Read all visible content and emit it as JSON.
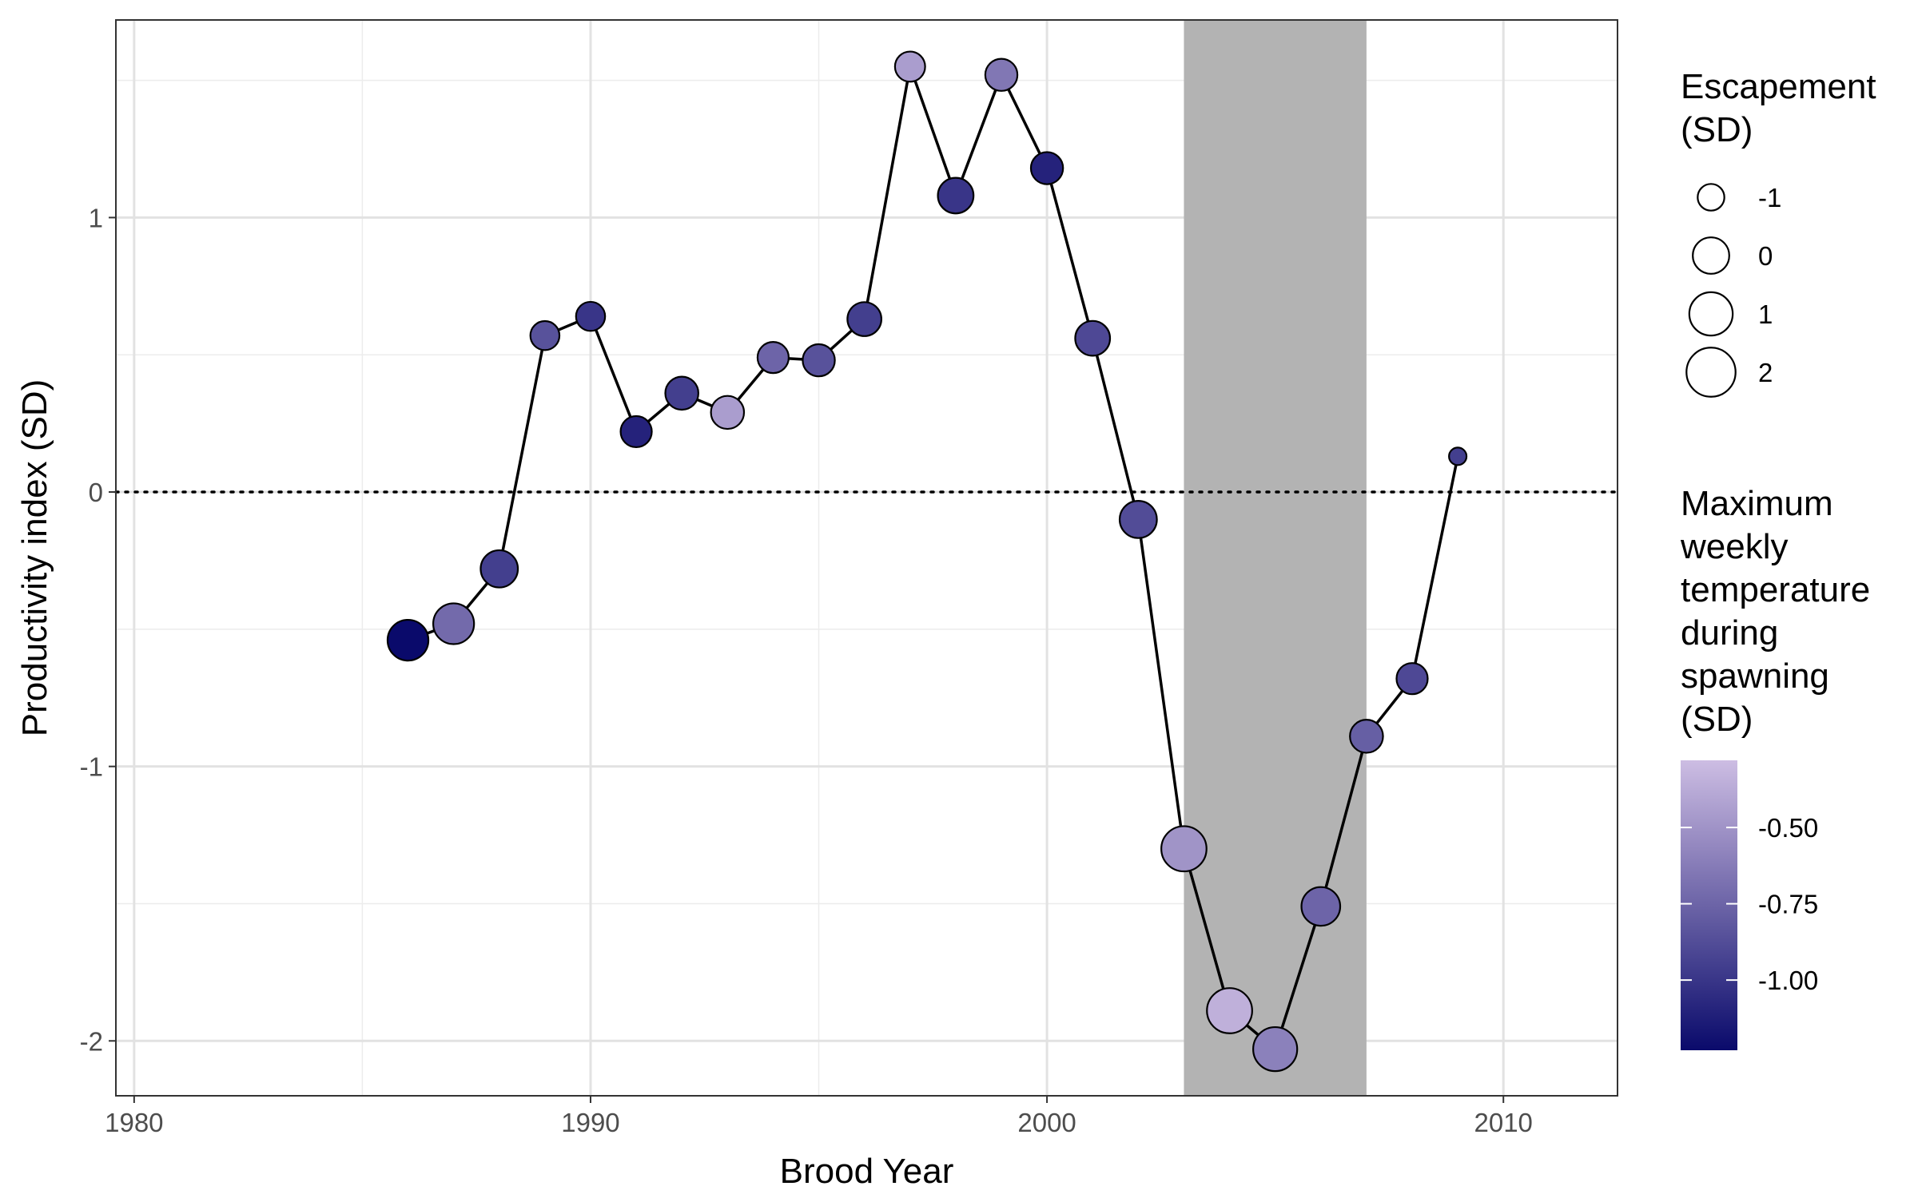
{
  "chart_data": {
    "type": "scatter",
    "title": "",
    "xlabel": "Brood Year",
    "ylabel": "Productivity index (SD)",
    "xlim": [
      1979.6,
      2012.5
    ],
    "ylim": [
      -2.2,
      1.72
    ],
    "x_ticks": [
      1980,
      1990,
      2000,
      2010
    ],
    "x_tick_labels": [
      "1980",
      "1990",
      "2000",
      "2010"
    ],
    "y_ticks": [
      -2,
      -1,
      0,
      1
    ],
    "y_tick_labels": [
      "-2",
      "-1",
      "0",
      "1"
    ],
    "grid": true,
    "reference_line": {
      "y": 0,
      "style": "dotted"
    },
    "shaded_region": {
      "x_start": 2003,
      "x_end": 2007,
      "color": "#b3b3b3"
    },
    "line_color": "#000000",
    "series": [
      {
        "points": [
          {
            "x": 1986,
            "y": -0.54,
            "escapement": 0.6,
            "temperature": -1.23
          },
          {
            "x": 1987,
            "y": -0.48,
            "escapement": 0.6,
            "temperature": -0.72
          },
          {
            "x": 1988,
            "y": -0.28,
            "escapement": 0.1,
            "temperature": -0.95
          },
          {
            "x": 1989,
            "y": 0.57,
            "escapement": -0.8,
            "temperature": -0.85
          },
          {
            "x": 1990,
            "y": 0.64,
            "escapement": -0.8,
            "temperature": -1.0
          },
          {
            "x": 1991,
            "y": 0.22,
            "escapement": -0.6,
            "temperature": -1.1
          },
          {
            "x": 1992,
            "y": 0.36,
            "escapement": -0.4,
            "temperature": -0.95
          },
          {
            "x": 1993,
            "y": 0.29,
            "escapement": -0.4,
            "temperature": -0.45
          },
          {
            "x": 1994,
            "y": 0.49,
            "escapement": -0.6,
            "temperature": -0.75
          },
          {
            "x": 1995,
            "y": 0.48,
            "escapement": -0.5,
            "temperature": -0.85
          },
          {
            "x": 1996,
            "y": 0.63,
            "escapement": -0.3,
            "temperature": -0.95
          },
          {
            "x": 1997,
            "y": 1.55,
            "escapement": -0.7,
            "temperature": -0.45
          },
          {
            "x": 1998,
            "y": 1.08,
            "escapement": -0.1,
            "temperature": -1.0
          },
          {
            "x": 1999,
            "y": 1.52,
            "escapement": -0.5,
            "temperature": -0.65
          },
          {
            "x": 2000,
            "y": 1.18,
            "escapement": -0.5,
            "temperature": -1.1
          },
          {
            "x": 2001,
            "y": 0.56,
            "escapement": -0.2,
            "temperature": -0.9
          },
          {
            "x": 2002,
            "y": -0.1,
            "escapement": 0.1,
            "temperature": -0.88
          },
          {
            "x": 2003,
            "y": -1.3,
            "escapement": 1.3,
            "temperature": -0.5
          },
          {
            "x": 2004,
            "y": -1.89,
            "escapement": 1.3,
            "temperature": -0.35
          },
          {
            "x": 2005,
            "y": -2.03,
            "escapement": 1.1,
            "temperature": -0.6
          },
          {
            "x": 2006,
            "y": -1.51,
            "escapement": 0.3,
            "temperature": -0.75
          },
          {
            "x": 2007,
            "y": -0.89,
            "escapement": -0.4,
            "temperature": -0.78
          },
          {
            "x": 2008,
            "y": -0.68,
            "escapement": -0.6,
            "temperature": -0.9
          },
          {
            "x": 2009,
            "y": 0.13,
            "escapement": -1.5,
            "temperature": -0.95
          }
        ]
      }
    ],
    "size_legend": {
      "title_lines": [
        "Escapement",
        "(SD)"
      ],
      "entries": [
        {
          "label": "-1",
          "value": -1
        },
        {
          "label": "0",
          "value": 0
        },
        {
          "label": "1",
          "value": 1
        },
        {
          "label": "2",
          "value": 2
        }
      ]
    },
    "color_legend": {
      "title_lines": [
        "Maximum",
        "weekly",
        "temperature",
        "during",
        "spawning",
        "(SD)"
      ],
      "range": [
        -1.23,
        -0.28
      ],
      "low_color": "#0a0a6b",
      "high_color": "#cdbde3",
      "ticks": [
        {
          "label": "-0.50",
          "value": -0.5
        },
        {
          "label": "-0.75",
          "value": -0.75
        },
        {
          "label": "-1.00",
          "value": -1.0
        }
      ]
    }
  }
}
